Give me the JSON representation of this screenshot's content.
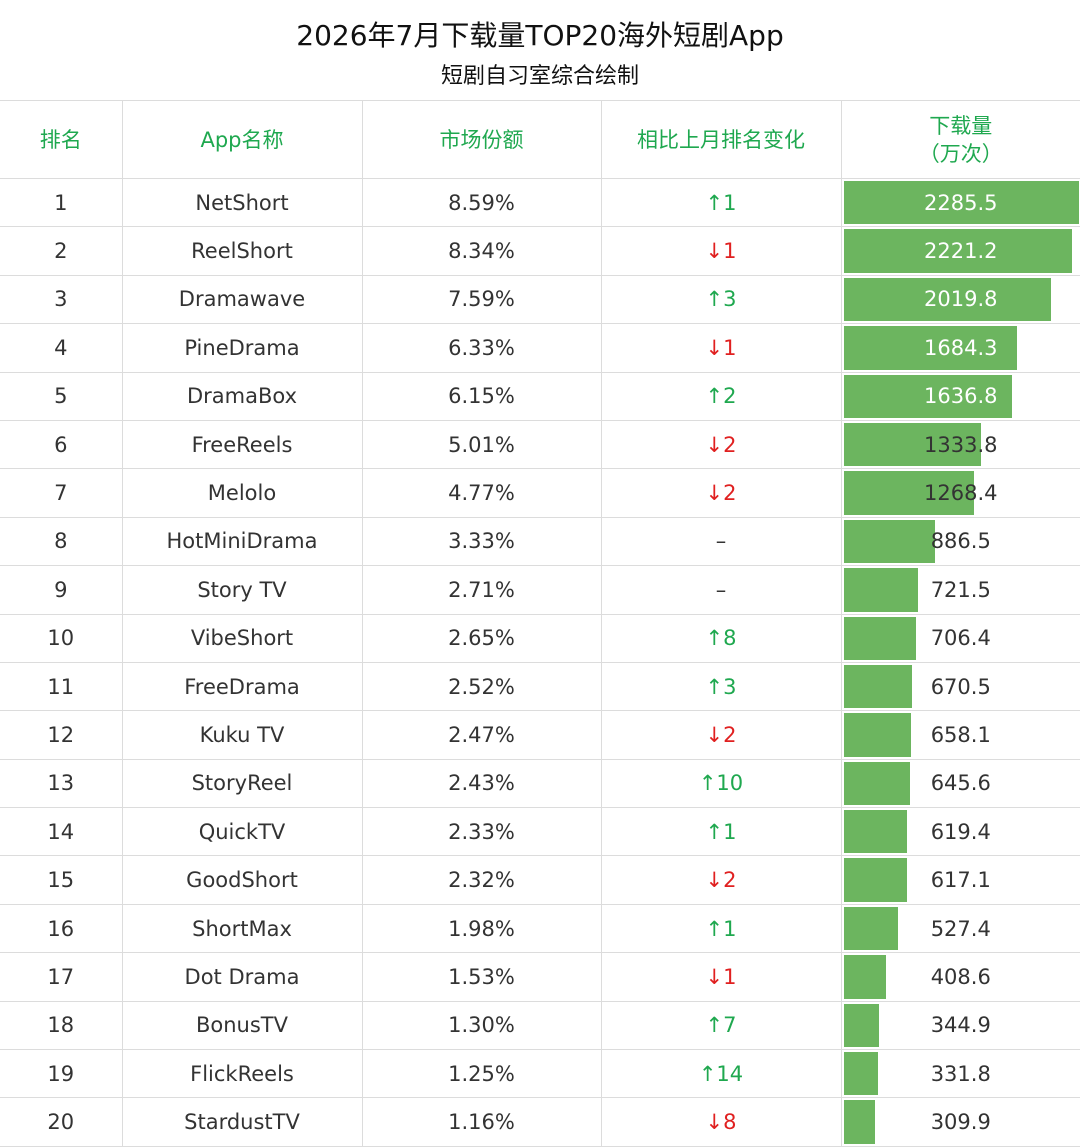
{
  "title": "2026年7月下载量TOP20海外短剧App",
  "subtitle": "短剧自习室综合绘制",
  "colors": {
    "header_text": "#1fa84f",
    "bar": "#6cb55f",
    "up": "#1fa84f",
    "down": "#e02020"
  },
  "columns": [
    "排名",
    "App名称",
    "市场份额",
    "相比上月排名变化"
  ],
  "column_downloads_line1": "下载量",
  "column_downloads_line2": "（万次）",
  "chart_data": {
    "type": "table",
    "bar_max": 2285.5,
    "rows": [
      {
        "rank": "1",
        "app": "NetShort",
        "share": "8.59%",
        "change": "↑1",
        "dir": "up",
        "downloads": 2285.5
      },
      {
        "rank": "2",
        "app": "ReelShort",
        "share": "8.34%",
        "change": "↓1",
        "dir": "down",
        "downloads": 2221.2
      },
      {
        "rank": "3",
        "app": "Dramawave",
        "share": "7.59%",
        "change": "↑3",
        "dir": "up",
        "downloads": 2019.8
      },
      {
        "rank": "4",
        "app": "PineDrama",
        "share": "6.33%",
        "change": "↓1",
        "dir": "down",
        "downloads": 1684.3
      },
      {
        "rank": "5",
        "app": "DramaBox",
        "share": "6.15%",
        "change": "↑2",
        "dir": "up",
        "downloads": 1636.8
      },
      {
        "rank": "6",
        "app": "FreeReels",
        "share": "5.01%",
        "change": "↓2",
        "dir": "down",
        "downloads": 1333.8
      },
      {
        "rank": "7",
        "app": "Melolo",
        "share": "4.77%",
        "change": "↓2",
        "dir": "down",
        "downloads": 1268.4
      },
      {
        "rank": "8",
        "app": "HotMiniDrama",
        "share": "3.33%",
        "change": "–",
        "dir": "same",
        "downloads": 886.5
      },
      {
        "rank": "9",
        "app": "Story TV",
        "share": "2.71%",
        "change": "–",
        "dir": "same",
        "downloads": 721.5
      },
      {
        "rank": "10",
        "app": "VibeShort",
        "share": "2.65%",
        "change": "↑8",
        "dir": "up",
        "downloads": 706.4
      },
      {
        "rank": "11",
        "app": "FreeDrama",
        "share": "2.52%",
        "change": "↑3",
        "dir": "up",
        "downloads": 670.5
      },
      {
        "rank": "12",
        "app": "Kuku TV",
        "share": "2.47%",
        "change": "↓2",
        "dir": "down",
        "downloads": 658.1
      },
      {
        "rank": "13",
        "app": "StoryReel",
        "share": "2.43%",
        "change": "↑10",
        "dir": "up",
        "downloads": 645.6
      },
      {
        "rank": "14",
        "app": "QuickTV",
        "share": "2.33%",
        "change": "↑1",
        "dir": "up",
        "downloads": 619.4
      },
      {
        "rank": "15",
        "app": "GoodShort",
        "share": "2.32%",
        "change": "↓2",
        "dir": "down",
        "downloads": 617.1
      },
      {
        "rank": "16",
        "app": "ShortMax",
        "share": "1.98%",
        "change": "↑1",
        "dir": "up",
        "downloads": 527.4
      },
      {
        "rank": "17",
        "app": "Dot Drama",
        "share": "1.53%",
        "change": "↓1",
        "dir": "down",
        "downloads": 408.6
      },
      {
        "rank": "18",
        "app": "BonusTV",
        "share": "1.30%",
        "change": "↑7",
        "dir": "up",
        "downloads": 344.9
      },
      {
        "rank": "19",
        "app": "FlickReels",
        "share": "1.25%",
        "change": "↑14",
        "dir": "up",
        "downloads": 331.8
      },
      {
        "rank": "20",
        "app": "StardustTV",
        "share": "1.16%",
        "change": "↓8",
        "dir": "down",
        "downloads": 309.9
      }
    ]
  }
}
